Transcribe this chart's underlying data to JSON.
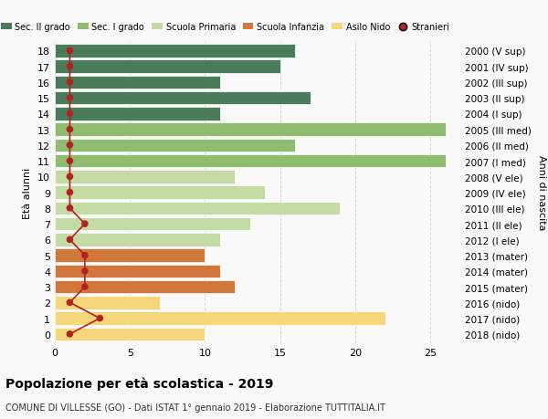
{
  "ages": [
    18,
    17,
    16,
    15,
    14,
    13,
    12,
    11,
    10,
    9,
    8,
    7,
    6,
    5,
    4,
    3,
    2,
    1,
    0
  ],
  "right_labels": [
    "2000 (V sup)",
    "2001 (IV sup)",
    "2002 (III sup)",
    "2003 (II sup)",
    "2004 (I sup)",
    "2005 (III med)",
    "2006 (II med)",
    "2007 (I med)",
    "2008 (V ele)",
    "2009 (IV ele)",
    "2010 (III ele)",
    "2011 (II ele)",
    "2012 (I ele)",
    "2013 (mater)",
    "2014 (mater)",
    "2015 (mater)",
    "2016 (nido)",
    "2017 (nido)",
    "2018 (nido)"
  ],
  "bar_values": [
    16,
    15,
    11,
    17,
    11,
    26,
    16,
    26,
    12,
    14,
    19,
    13,
    11,
    10,
    11,
    12,
    7,
    22,
    10
  ],
  "bar_colors": [
    "#4a7c59",
    "#4a7c59",
    "#4a7c59",
    "#4a7c59",
    "#4a7c59",
    "#8fbc6e",
    "#8fbc6e",
    "#8fbc6e",
    "#c5dba4",
    "#c5dba4",
    "#c5dba4",
    "#c5dba4",
    "#c5dba4",
    "#d2773a",
    "#d2773a",
    "#d2773a",
    "#f5d67a",
    "#f5d67a",
    "#f5d67a"
  ],
  "stranieri_x": [
    1,
    1,
    1,
    1,
    1,
    1,
    1,
    1,
    1,
    1,
    1,
    2,
    1,
    2,
    2,
    2,
    1,
    3,
    1
  ],
  "legend_labels": [
    "Sec. II grado",
    "Sec. I grado",
    "Scuola Primaria",
    "Scuola Infanzia",
    "Asilo Nido",
    "Stranieri"
  ],
  "legend_colors": [
    "#4a7c59",
    "#8fbc6e",
    "#c5dba4",
    "#d2773a",
    "#f5d67a",
    "#b22222"
  ],
  "title": "Popolazione per età scolastica - 2019",
  "subtitle": "COMUNE DI VILLESSE (GO) - Dati ISTAT 1° gennaio 2019 - Elaborazione TUTTITALIA.IT",
  "ylabel_left": "Età alunni",
  "ylabel_right": "Anni di nascita",
  "xlim": [
    0,
    27
  ],
  "bg_color": "#f9f9f9",
  "bar_height": 0.85,
  "grid_color": "#cccccc",
  "stranieri_color": "#b22222",
  "stranieri_line_color": "#b22222"
}
